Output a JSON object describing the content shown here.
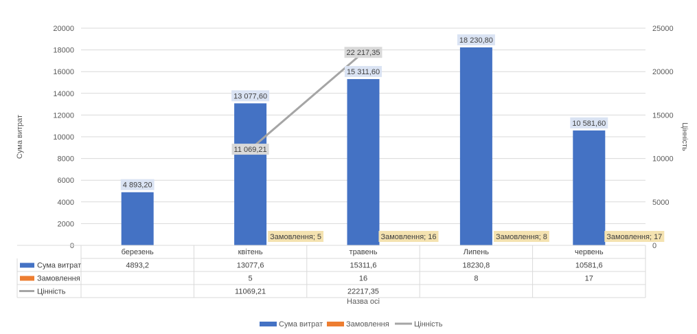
{
  "chart_data": {
    "type": "bar",
    "categories": [
      "березень",
      "квітень",
      "травень",
      "Липень",
      "червень"
    ],
    "series": [
      {
        "name": "Сума витрат",
        "type": "bar",
        "axis": "left",
        "values": [
          4893.2,
          13077.6,
          15311.6,
          18230.8,
          10581.6
        ],
        "data_labels": [
          "4 893,20",
          "13 077,60",
          "15 311,60",
          "18 230,80",
          "10 581,60"
        ],
        "table_values": [
          "4893,2",
          "13077,6",
          "15311,6",
          "18230,8",
          "10581,6"
        ],
        "color": "#4472c4"
      },
      {
        "name": "Замовлення",
        "type": "bar",
        "axis": "left",
        "values": [
          null,
          5,
          16,
          8,
          17
        ],
        "data_labels": [
          "",
          "Замовлення; 5",
          "Замовлення; 16",
          "Замовлення; 8",
          "Замовлення; 17"
        ],
        "table_values": [
          "",
          "5",
          "16",
          "8",
          "17"
        ],
        "color": "#ed7d31"
      },
      {
        "name": "Цінність",
        "type": "line",
        "axis": "right",
        "values": [
          null,
          11069.21,
          22217.35,
          null,
          null
        ],
        "data_labels": [
          "",
          "11 069,21",
          "22 217,35",
          "",
          ""
        ],
        "table_values": [
          "",
          "11069,21",
          "22217,35",
          "",
          ""
        ],
        "color": "#a5a5a5"
      }
    ],
    "ylabel": "Сума витрат",
    "y2label": "Цінність",
    "xlabel": "Назва осі",
    "ylim": [
      0,
      20000
    ],
    "y_ticks": [
      "0",
      "2000",
      "4000",
      "6000",
      "8000",
      "10000",
      "12000",
      "14000",
      "16000",
      "18000",
      "20000"
    ],
    "y2lim": [
      0,
      25000
    ],
    "y2_ticks": [
      "0",
      "5000",
      "10000",
      "15000",
      "20000",
      "25000"
    ],
    "grid": true,
    "data_table": true,
    "legend_position": "bottom"
  }
}
